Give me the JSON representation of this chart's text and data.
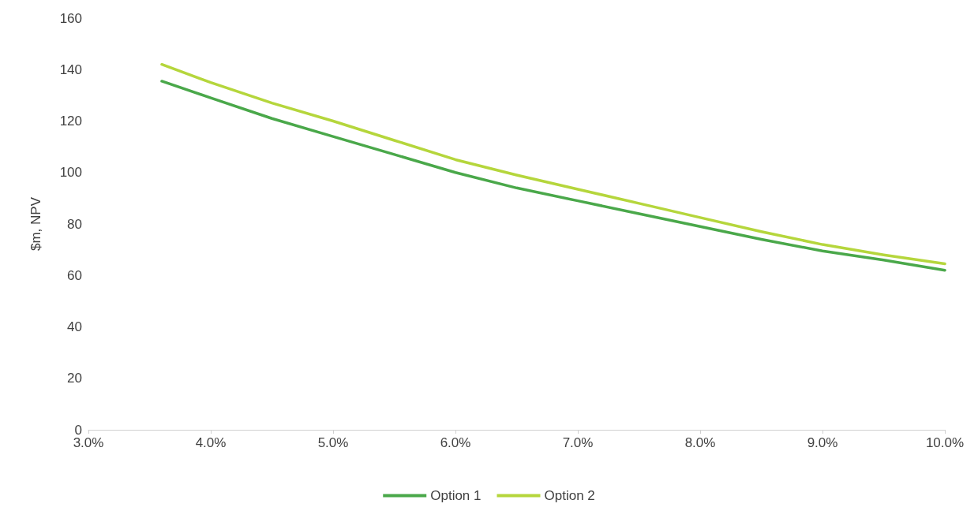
{
  "chart_data": {
    "type": "line",
    "ylabel": "$m, NPV",
    "x": [
      3.6,
      4.0,
      4.5,
      5.0,
      5.5,
      6.0,
      6.5,
      7.0,
      7.5,
      8.0,
      8.5,
      9.0,
      9.5,
      10.0
    ],
    "series": [
      {
        "name": "Option 1",
        "color": "#4aa84a",
        "values": [
          135.5,
          129,
          121,
          114,
          107,
          100,
          94,
          89,
          84,
          79,
          74,
          69.5,
          66,
          62
        ]
      },
      {
        "name": "Option 2",
        "color": "#b5d63c",
        "values": [
          142,
          135,
          127,
          120,
          112.5,
          105,
          99,
          93.5,
          88,
          82.5,
          77,
          72,
          68,
          64.5
        ]
      }
    ],
    "xlim": [
      3,
      10
    ],
    "xticks": [
      {
        "value": 3,
        "label": "3.0%"
      },
      {
        "value": 4,
        "label": "4.0%"
      },
      {
        "value": 5,
        "label": "5.0%"
      },
      {
        "value": 6,
        "label": "6.0%"
      },
      {
        "value": 7,
        "label": "7.0%"
      },
      {
        "value": 8,
        "label": "8.0%"
      },
      {
        "value": 9,
        "label": "9.0%"
      },
      {
        "value": 10,
        "label": "10.0%"
      }
    ],
    "ylim": [
      0,
      160
    ],
    "yticks": [
      0,
      20,
      40,
      60,
      80,
      100,
      120,
      140,
      160
    ],
    "grid": false,
    "legend": "bottom",
    "marker": "none",
    "line_style": "solid"
  }
}
